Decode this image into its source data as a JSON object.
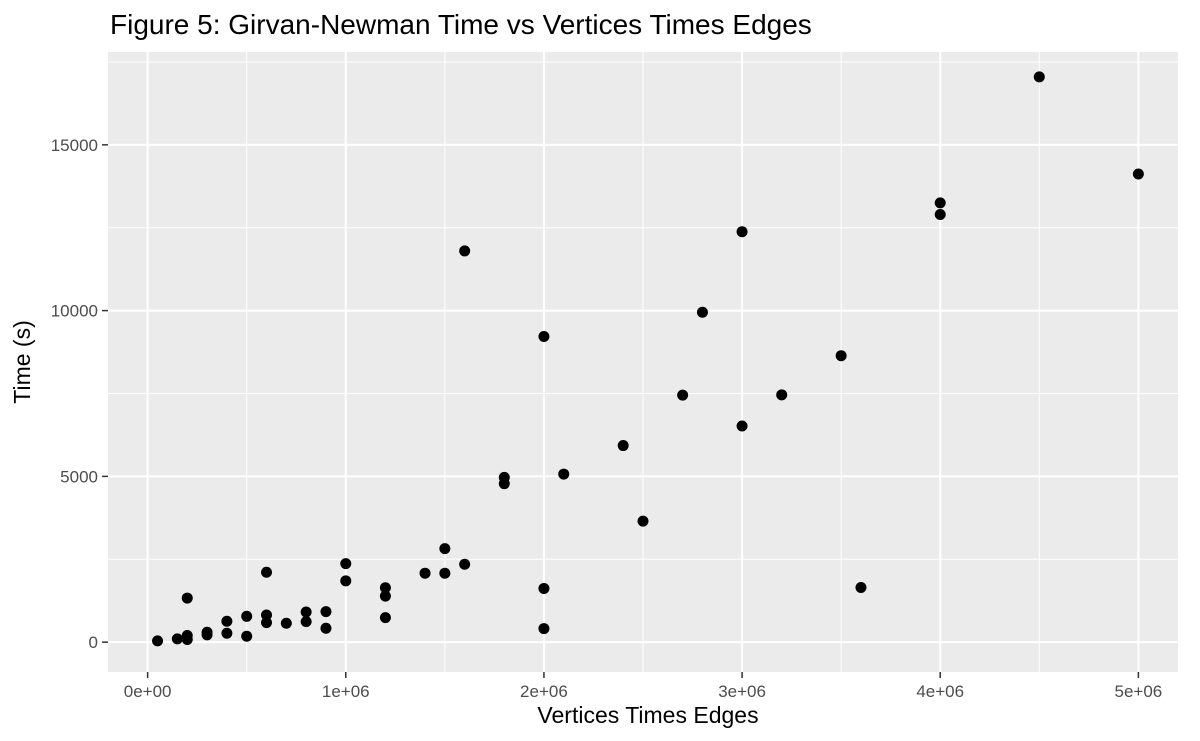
{
  "chart_data": {
    "type": "scatter",
    "title": "Figure 5: Girvan-Newman Time vs Vertices Times Edges",
    "xlabel": "Vertices Times Edges",
    "ylabel": "Time (s)",
    "xlim": [
      -200000,
      5200000
    ],
    "ylim": [
      -900,
      17800
    ],
    "x_ticks": [
      0,
      1000000,
      2000000,
      3000000,
      4000000,
      5000000
    ],
    "x_tick_labels": [
      "0e+00",
      "1e+06",
      "2e+06",
      "3e+06",
      "4e+06",
      "5e+06"
    ],
    "y_ticks": [
      0,
      5000,
      10000,
      15000
    ],
    "y_tick_labels": [
      "0",
      "5000",
      "10000",
      "15000"
    ],
    "grid": true,
    "colors": {
      "panel": "#ebebeb",
      "grid": "#ffffff",
      "point": "#000000",
      "tick_text": "#4d4d4d",
      "tick_mark": "#333333"
    },
    "x": [
      50000,
      150000,
      200000,
      200000,
      200000,
      300000,
      300000,
      400000,
      400000,
      500000,
      500000,
      600000,
      600000,
      600000,
      700000,
      800000,
      800000,
      900000,
      900000,
      1000000,
      1000000,
      1200000,
      1200000,
      1200000,
      1400000,
      1500000,
      1500000,
      1600000,
      1600000,
      1800000,
      1800000,
      2000000,
      2000000,
      2000000,
      2100000,
      2400000,
      2500000,
      2700000,
      2800000,
      3000000,
      3000000,
      3200000,
      3500000,
      3600000,
      4000000,
      4000000,
      4500000,
      5000000
    ],
    "y": [
      40,
      100,
      80,
      200,
      1330,
      220,
      300,
      270,
      630,
      180,
      780,
      590,
      820,
      2110,
      570,
      620,
      910,
      420,
      920,
      1850,
      2370,
      740,
      1390,
      1640,
      2080,
      2080,
      2820,
      2350,
      11800,
      4780,
      4970,
      410,
      1620,
      9220,
      5070,
      5930,
      3650,
      7450,
      9950,
      6520,
      12380,
      7460,
      8640,
      1650,
      12900,
      13250,
      17050,
      14120
    ]
  }
}
